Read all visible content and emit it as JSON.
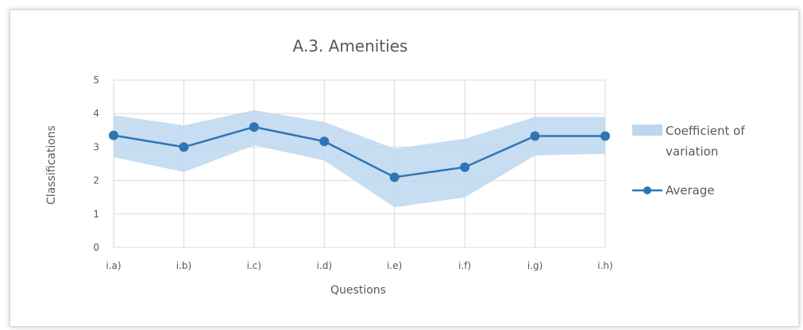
{
  "chart_data": {
    "type": "line",
    "title": "A.3. Amenities",
    "xlabel": "Questions",
    "ylabel": "Classifications",
    "categories": [
      "i.a)",
      "i.b)",
      "i.c)",
      "i.d)",
      "i.e)",
      "i.f)",
      "i.g)",
      "i.h)"
    ],
    "ylim": [
      0,
      5
    ],
    "yticks": [
      0,
      1,
      2,
      3,
      4,
      5
    ],
    "grid": true,
    "legend_position": "right",
    "series": [
      {
        "name": "Coefficient of variation",
        "kind": "band",
        "color": "#bdd7ee",
        "upper": [
          3.95,
          3.65,
          4.1,
          3.75,
          2.95,
          3.25,
          3.9,
          3.9
        ],
        "lower": [
          2.7,
          2.25,
          3.05,
          2.6,
          1.2,
          1.5,
          2.75,
          2.8
        ]
      },
      {
        "name": "Average",
        "kind": "line",
        "color": "#2e75b6",
        "values": [
          3.35,
          3.0,
          3.6,
          3.17,
          2.1,
          2.4,
          3.33,
          3.33
        ]
      }
    ]
  }
}
